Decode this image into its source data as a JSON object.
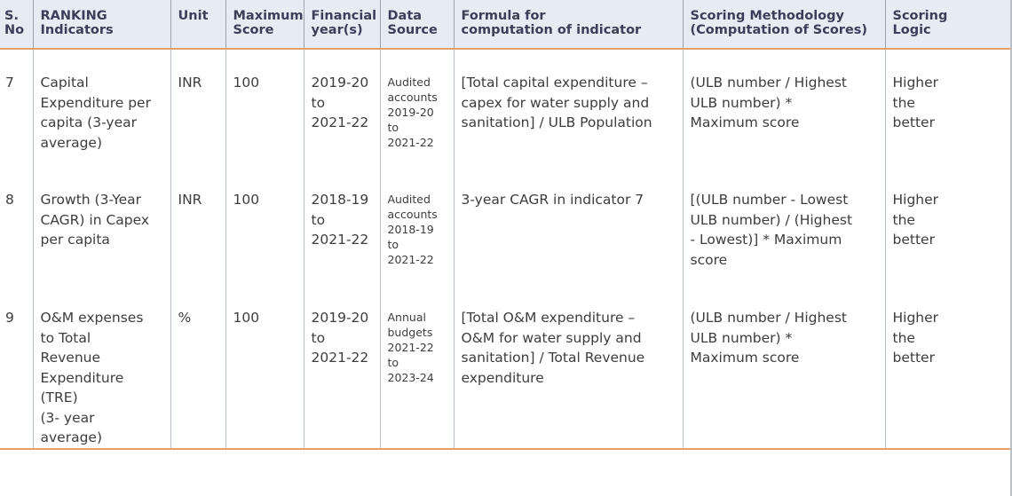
{
  "headers": [
    "S.\nNo",
    "RANKING\nIndicators",
    "Unit",
    "Maximum\nScore",
    "Financial\nyear(s)",
    "Data\nSource",
    "Formula for\ncomputation of indicator",
    "Scoring Methodology\n(Computation of Scores)",
    "Scoring\nLogic"
  ],
  "rows": [
    {
      "sno": "7",
      "indicator": "Capital\nExpenditure per\ncapita (3-year\naverage)",
      "unit": "INR",
      "max_score": "100",
      "years": "2019-20\nto\n2021-22",
      "data_source": "Audited\naccounts\n2019-20\nto\n2021-22",
      "formula": "[Total capital expenditure –\ncapex for water supply and\nsanitation] / ULB Population",
      "methodology": "(ULB number / Highest\nULB number) *\nMaximum score",
      "logic": "Higher\nthe\nbetter"
    },
    {
      "sno": "8",
      "indicator": "Growth (3-Year\nCAGR) in Capex\nper capita",
      "unit": "INR",
      "max_score": "100",
      "years": "2018-19\nto\n2021-22",
      "data_source": "Audited\naccounts\n2018-19\nto\n2021-22",
      "formula": "3-year CAGR in indicator 7",
      "methodology": "[(ULB number - Lowest\nULB number) / (Highest\n- Lowest)] * Maximum\nscore",
      "logic": "Higher\nthe\nbetter"
    },
    {
      "sno": "9",
      "indicator": "O&M expenses\nto Total\nRevenue\nExpenditure\n(TRE)\n(3- year\naverage)",
      "unit": "%",
      "max_score": "100",
      "years": "2019-20\nto\n2021-22",
      "data_source": "Annual\nbudgets\n2021-22\nto\n2023-24",
      "formula": "[Total O&M expenditure –\nO&M for water supply and\nsanitation] / Total Revenue\nexpenditure",
      "methodology": "(ULB number / Highest\nULB number) *\nMaximum score",
      "logic": "Higher\nthe\nbetter"
    }
  ]
}
